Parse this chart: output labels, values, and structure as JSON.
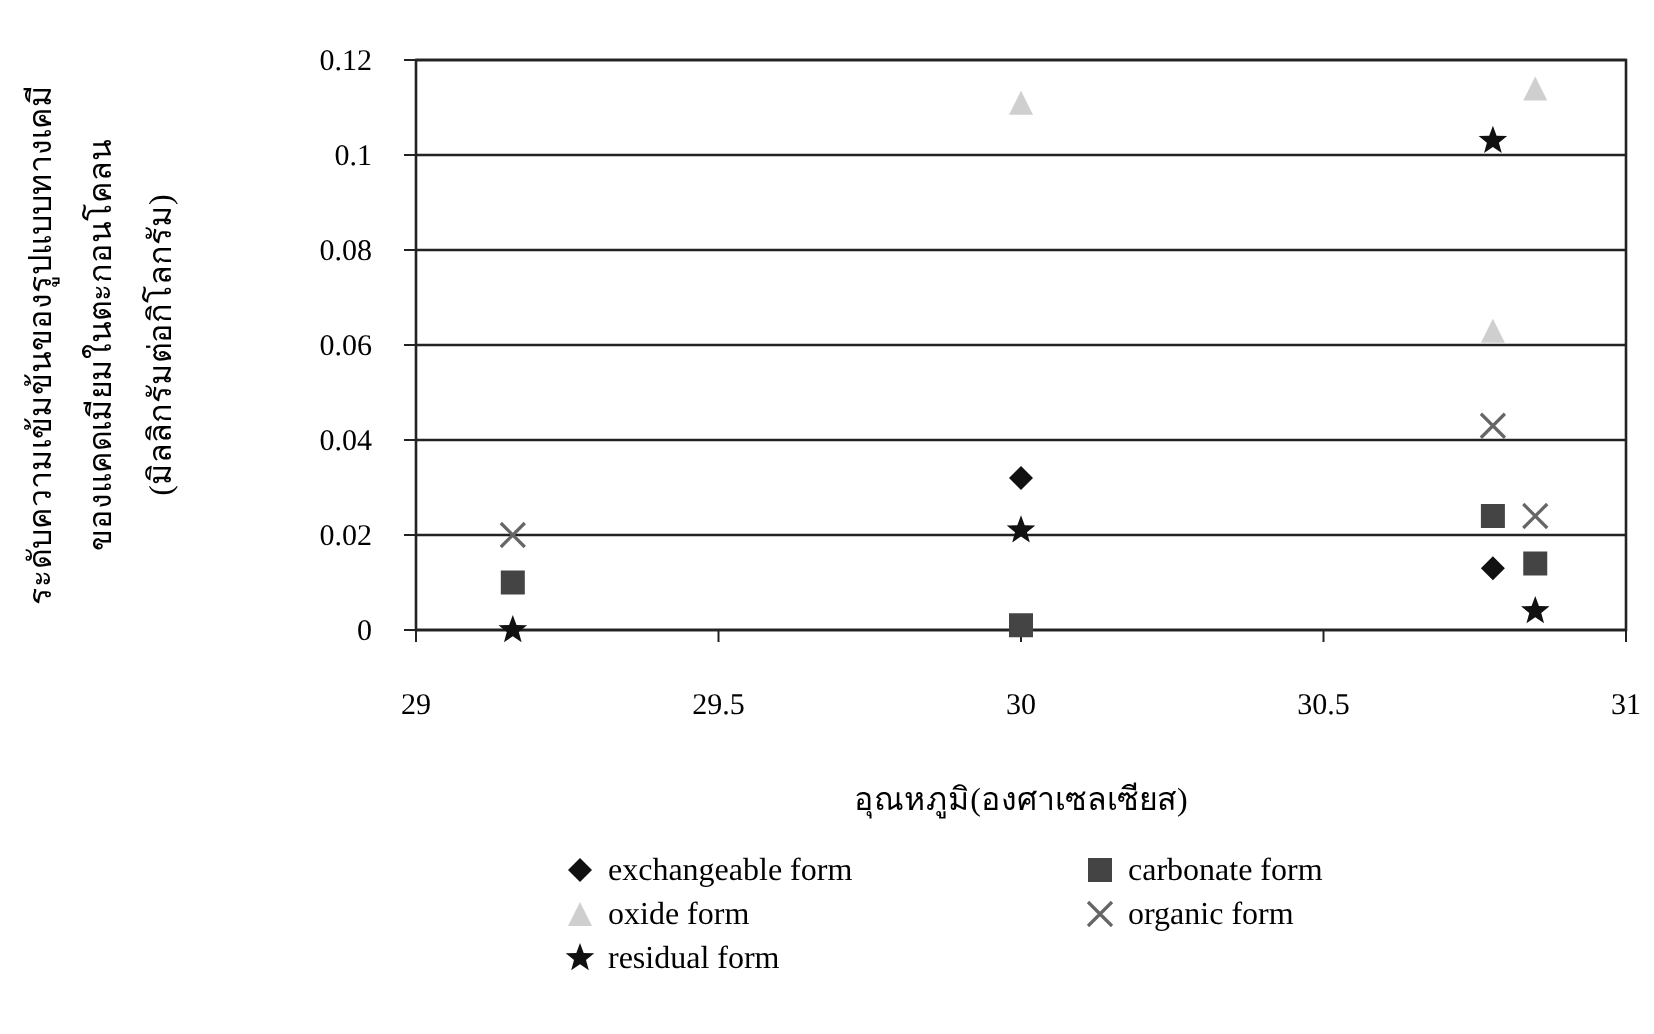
{
  "chart_data": {
    "type": "scatter",
    "xlabel": "อุณหภูมิ(องศาเซลเซียส)",
    "ylabel": "ระดับความเข้มข้นของรูปแบบทางเคมี\nของแคดเมียมในตะกอนโคลน\n(มิลลิกรัมต่อกิโลกรัม)",
    "xlim": [
      29,
      31
    ],
    "xticks": [
      29,
      29.5,
      30,
      30.5,
      31
    ],
    "ylim": [
      0,
      0.12
    ],
    "yticks": [
      0,
      0.02,
      0.04,
      0.06,
      0.08,
      0.1,
      0.12
    ],
    "grid": "y",
    "legend": "bottom",
    "series": [
      {
        "name": "exchangeable form",
        "color": "#111111",
        "marker": "diamond",
        "x": [
          30,
          30.78
        ],
        "values": [
          0.032,
          0.013
        ]
      },
      {
        "name": "carbonate form",
        "color": "#444444",
        "marker": "square",
        "x": [
          29.16,
          30,
          30.78,
          30.85
        ],
        "values": [
          0.01,
          0.001,
          0.024,
          0.014
        ]
      },
      {
        "name": "oxide form",
        "color": "#cfcfcf",
        "marker": "triangle",
        "x": [
          30,
          30.78,
          30.85
        ],
        "values": [
          0.111,
          0.063,
          0.114
        ]
      },
      {
        "name": "organic form",
        "color": "#666666",
        "marker": "cross",
        "x": [
          29.16,
          30.78,
          30.85
        ],
        "values": [
          0.02,
          0.043,
          0.024
        ]
      },
      {
        "name": "residual form",
        "color": "#111111",
        "marker": "star",
        "x": [
          29.16,
          30,
          30.78,
          30.85
        ],
        "values": [
          0,
          0.021,
          0.103,
          0.004
        ]
      }
    ]
  }
}
